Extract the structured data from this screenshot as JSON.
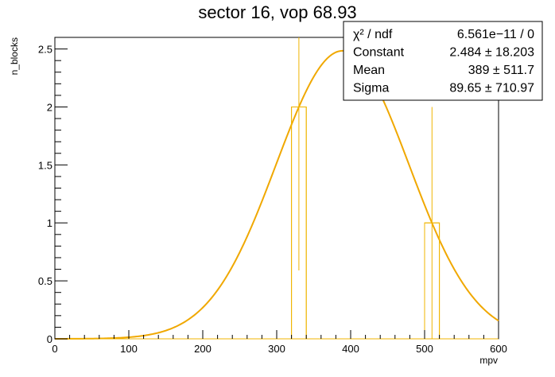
{
  "chart_data": {
    "type": "bar",
    "title": "sector 16, vop 68.93",
    "xlabel": "mpv",
    "ylabel": "n_blocks",
    "xlim": [
      0,
      600
    ],
    "ylim": [
      0,
      2.6
    ],
    "x_ticks": [
      0,
      100,
      200,
      300,
      400,
      500,
      600
    ],
    "y_ticks": [
      0,
      0.5,
      1,
      1.5,
      2,
      2.5
    ],
    "x_tick_labels": [
      "0",
      "100",
      "200",
      "300",
      "400",
      "500",
      "600"
    ],
    "y_tick_labels": [
      "0",
      "0.5",
      "1",
      "1.5",
      "2",
      "2.5"
    ],
    "bin_width": 20,
    "histogram": [
      {
        "x_low": 320,
        "x_high": 340,
        "value": 2,
        "error_low": 0.59,
        "error_high": 2.6
      },
      {
        "x_low": 500,
        "x_high": 520,
        "value": 1,
        "error_low": 0.0,
        "error_high": 2.0
      }
    ],
    "fit": {
      "function": "gaus",
      "constant": 2.484,
      "mean": 389,
      "sigma": 89.65
    },
    "colors": {
      "histogram": "#f0b400",
      "fit": "#f0a800",
      "axes": "#000000"
    },
    "stats_box": {
      "position": "top-right",
      "rows": [
        {
          "label": "χ² / ndf",
          "value": "6.561e−11 / 0"
        },
        {
          "label": "Constant",
          "value": "2.484 ± 18.203"
        },
        {
          "label": "Mean",
          "value": "389 ± 511.7"
        },
        {
          "label": "Sigma",
          "value": "89.65 ± 710.97"
        }
      ]
    }
  }
}
